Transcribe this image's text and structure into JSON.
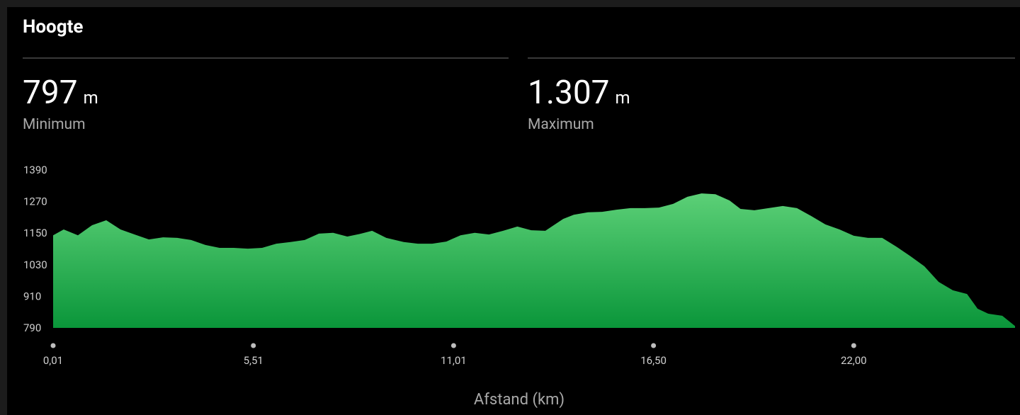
{
  "header": {
    "title": "Hoogte"
  },
  "stats": [
    {
      "value": "797",
      "unit": "m",
      "label": "Minimum"
    },
    {
      "value": "1.307",
      "unit": "m",
      "label": "Maximum"
    }
  ],
  "chart_data": {
    "type": "area",
    "xlabel": "Afstand (km)",
    "x": [
      0.01,
      0.3,
      0.69,
      1.08,
      1.47,
      1.86,
      2.25,
      2.64,
      3.03,
      3.42,
      3.8,
      4.19,
      4.58,
      4.97,
      5.36,
      5.75,
      6.14,
      6.53,
      6.92,
      7.31,
      7.7,
      8.09,
      8.47,
      8.77,
      9.16,
      9.64,
      10.03,
      10.42,
      10.81,
      11.2,
      11.59,
      11.98,
      12.37,
      12.76,
      13.14,
      13.53,
      14.02,
      14.31,
      14.7,
      15.09,
      15.48,
      15.87,
      16.26,
      16.65,
      17.04,
      17.43,
      17.82,
      18.2,
      18.59,
      18.89,
      19.27,
      19.66,
      20.05,
      20.44,
      20.83,
      21.22,
      21.61,
      22.0,
      22.39,
      22.78,
      23.17,
      23.56,
      23.94,
      24.33,
      24.72,
      25.11,
      25.4,
      25.69,
      26.08,
      26.43
    ],
    "values": [
      1142,
      1164,
      1142,
      1180,
      1199,
      1164,
      1145,
      1126,
      1134,
      1132,
      1124,
      1105,
      1094,
      1094,
      1091,
      1094,
      1110,
      1116,
      1124,
      1148,
      1151,
      1137,
      1148,
      1159,
      1132,
      1116,
      1110,
      1110,
      1118,
      1142,
      1151,
      1145,
      1159,
      1175,
      1161,
      1159,
      1204,
      1220,
      1229,
      1231,
      1239,
      1245,
      1245,
      1247,
      1261,
      1288,
      1301,
      1298,
      1274,
      1242,
      1237,
      1245,
      1253,
      1245,
      1215,
      1183,
      1164,
      1140,
      1132,
      1132,
      1099,
      1062,
      1024,
      965,
      933,
      919,
      863,
      844,
      836,
      797
    ],
    "colors": [
      "#5cd077",
      "#0a963a"
    ],
    "xlim": [
      0.01,
      26.43
    ],
    "ylim": [
      790,
      1390
    ],
    "xticks": [
      {
        "value": 0.01,
        "label": "0,01"
      },
      {
        "value": 5.51,
        "label": "5,51"
      },
      {
        "value": 11.01,
        "label": "11,01"
      },
      {
        "value": 16.5,
        "label": "16,50"
      },
      {
        "value": 22.0,
        "label": "22,00"
      }
    ],
    "yticks": [
      790,
      910,
      1030,
      1150,
      1270,
      1390
    ]
  }
}
